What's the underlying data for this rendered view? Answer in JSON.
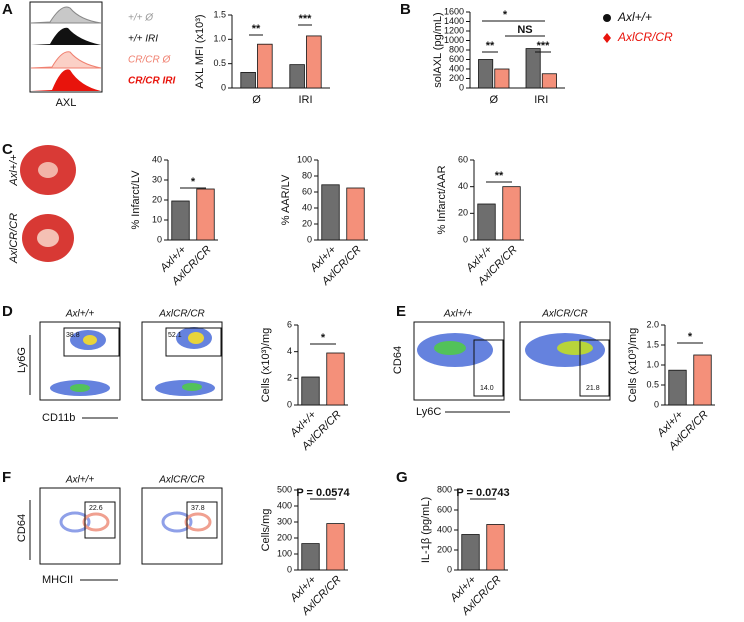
{
  "figure": {
    "panels": [
      "A",
      "B",
      "C",
      "D",
      "E",
      "F",
      "G"
    ],
    "histogram": {
      "labels": [
        "+/+ Ø",
        "+/+ IRI",
        "CR/CR Ø",
        "CR/CR IRI"
      ],
      "xlabel": "AXL"
    },
    "hearts": {
      "labels": [
        "Axl+/+",
        "AxlCR/CR"
      ]
    },
    "flow": [
      {
        "titles": [
          "Axl+/+",
          "AxlCR/CR"
        ],
        "gates": [
          "38.8",
          "52.1"
        ],
        "ylabel": "Ly6G",
        "xlabel": "CD11b"
      },
      {
        "titles": [
          "Axl+/+",
          "AxlCR/CR"
        ],
        "gates": [
          "14.0",
          "21.8"
        ],
        "ylabel": "CD64",
        "xlabel": "Ly6C"
      },
      {
        "titles": [
          "Axl+/+",
          "AxlCR/CR"
        ],
        "gates": [
          "22.6",
          "37.8"
        ],
        "ylabel": "CD64",
        "xlabel": "MHCII"
      }
    ]
  },
  "chart_data": [
    {
      "type": "bar",
      "ylabel": "AXL MFI (x10³)",
      "categories": [
        "Ø",
        "IRI"
      ],
      "series": [
        {
          "color": "#6e6e6e",
          "values": [
            0.32,
            0.48
          ]
        },
        {
          "color": "#f4907a",
          "values": [
            0.9,
            1.07
          ]
        }
      ],
      "ylim": [
        0,
        1.5
      ],
      "yticks": [
        0,
        0.5,
        {
          "value": 1,
          "label": "1.0"
        },
        1.5
      ],
      "annotations": [
        "**",
        "***"
      ]
    },
    {
      "type": "bar",
      "ylabel": "solAXL (pg/mL)",
      "categories": [
        "Ø",
        "IRI"
      ],
      "series": [
        {
          "name": "Axl+/+",
          "color": "#6e6e6e",
          "values": [
            600,
            830
          ]
        },
        {
          "name": "AxlCR/CR",
          "color": "#f4907a",
          "values": [
            400,
            300
          ]
        }
      ],
      "ylim": [
        0,
        1600
      ],
      "yticks": [
        0,
        200,
        400,
        600,
        800,
        1000,
        1200,
        1400,
        1600
      ],
      "annotations": [
        "*",
        "NS",
        "**",
        "***"
      ]
    },
    {
      "type": "bar",
      "ylabel": "% Infarct/LV",
      "categories": [
        "Axl+/+",
        "AxlCR/CR"
      ],
      "values": [
        19.5,
        25.5
      ],
      "colors": [
        "#6e6e6e",
        "#f4907a"
      ],
      "ylim": [
        0,
        40
      ],
      "yticks": [
        0,
        10,
        20,
        30,
        40
      ],
      "annotations": [
        "*"
      ]
    },
    {
      "type": "bar",
      "ylabel": "% AAR/LV",
      "categories": [
        "Axl+/+",
        "AxlCR/CR"
      ],
      "values": [
        69,
        65
      ],
      "colors": [
        "#6e6e6e",
        "#f4907a"
      ],
      "ylim": [
        0,
        100
      ],
      "yticks": [
        0,
        20,
        40,
        60,
        80,
        100
      ],
      "annotations": []
    },
    {
      "type": "bar",
      "ylabel": "% Infarct/AAR",
      "categories": [
        "Axl+/+",
        "AxlCR/CR"
      ],
      "values": [
        27,
        40
      ],
      "colors": [
        "#6e6e6e",
        "#f4907a"
      ],
      "ylim": [
        0,
        60
      ],
      "yticks": [
        0,
        20,
        40,
        60
      ],
      "annotations": [
        "**"
      ]
    },
    {
      "type": "bar",
      "ylabel": "Cells (x10³)/mg",
      "categories": [
        "Axl+/+",
        "AxlCR/CR"
      ],
      "values": [
        2.1,
        3.9
      ],
      "colors": [
        "#6e6e6e",
        "#f4907a"
      ],
      "ylim": [
        0,
        6
      ],
      "yticks": [
        0,
        2,
        4,
        6
      ],
      "annotations": [
        "*"
      ]
    },
    {
      "type": "bar",
      "ylabel": "Cells (x10³)/mg",
      "categories": [
        "Axl+/+",
        "AxlCR/CR"
      ],
      "values": [
        0.87,
        1.25
      ],
      "colors": [
        "#6e6e6e",
        "#f4907a"
      ],
      "ylim": [
        0,
        2
      ],
      "yticks": [
        0,
        0.5,
        {
          "value": 1,
          "label": "1.0"
        },
        1.5,
        {
          "value": 2,
          "label": "2.0"
        }
      ],
      "annotations": [
        "*"
      ]
    },
    {
      "type": "bar",
      "ylabel": "Cells/mg",
      "categories": [
        "Axl+/+",
        "AxlCR/CR"
      ],
      "values": [
        165,
        290
      ],
      "colors": [
        "#6e6e6e",
        "#f4907a"
      ],
      "ylim": [
        0,
        500
      ],
      "yticks": [
        0,
        100,
        200,
        300,
        400,
        500
      ],
      "annotations": [
        "P = 0.0574"
      ]
    },
    {
      "type": "bar",
      "ylabel": "IL-1β (pg/mL)",
      "categories": [
        "Axl+/+",
        "AxlCR/CR"
      ],
      "values": [
        355,
        455
      ],
      "colors": [
        "#6e6e6e",
        "#f4907a"
      ],
      "ylim": [
        0,
        800
      ],
      "yticks": [
        0,
        200,
        400,
        600,
        800
      ],
      "annotations": [
        "P = 0.0743"
      ]
    }
  ]
}
